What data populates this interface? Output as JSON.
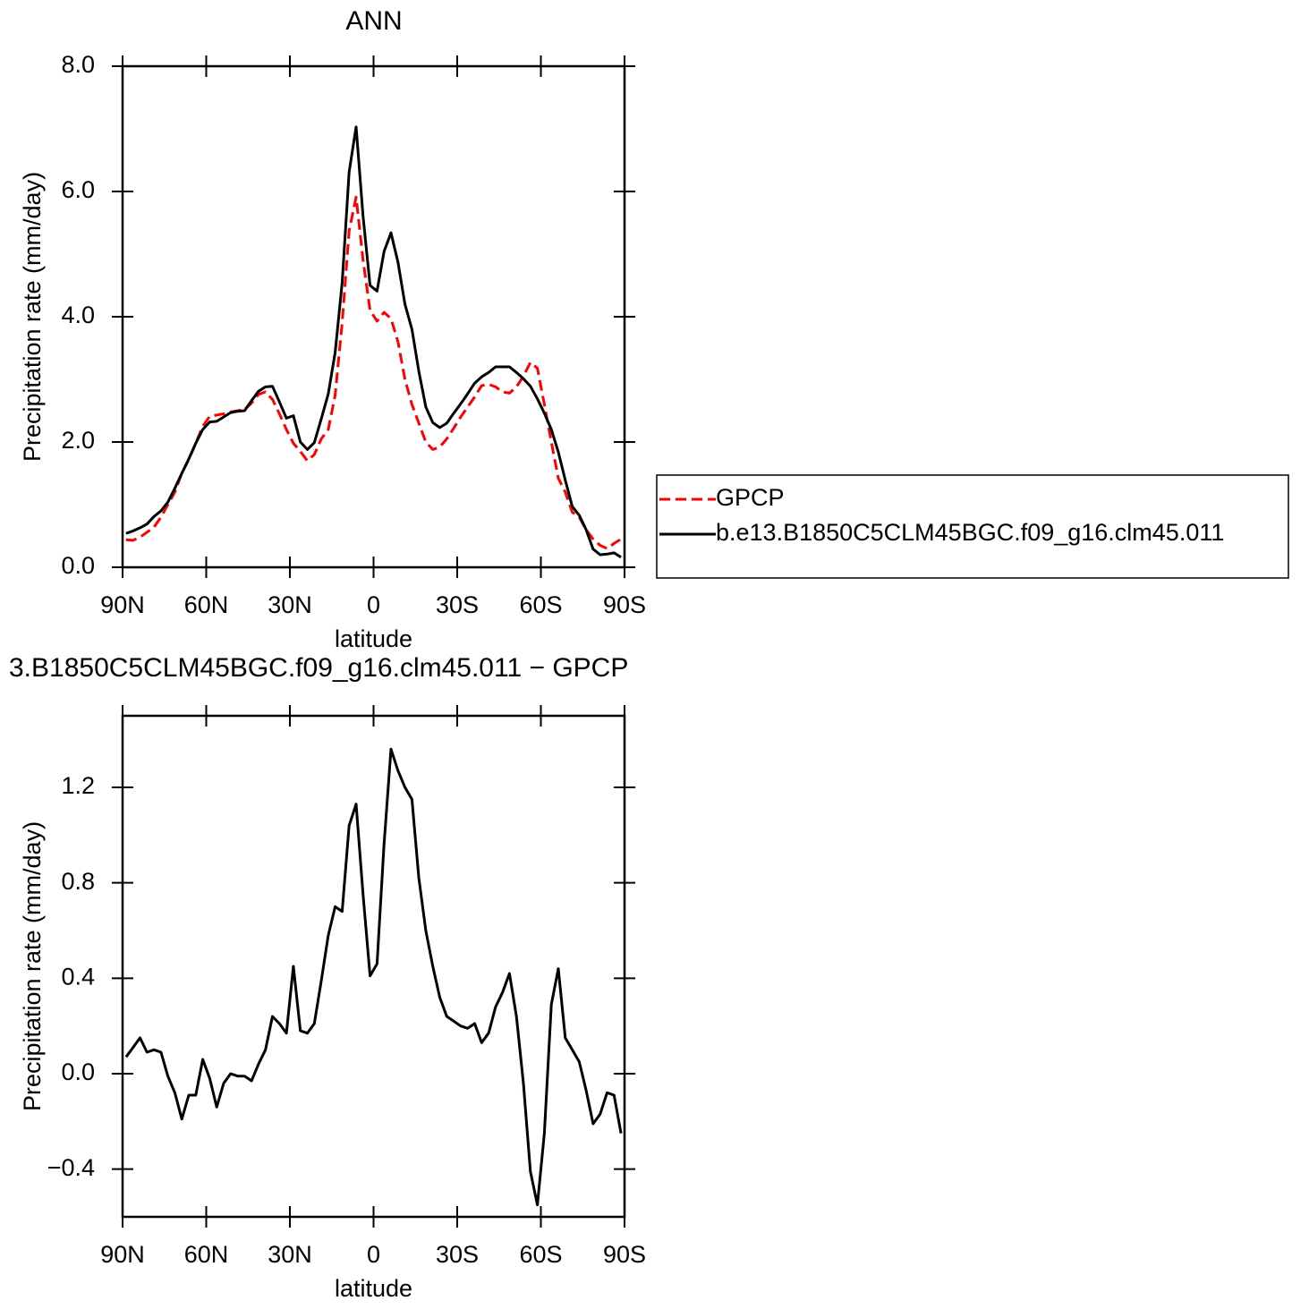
{
  "chart_data": [
    {
      "type": "line",
      "title": "ANN",
      "xlabel": "latitude",
      "ylabel": "Precipitation rate (mm/day)",
      "x": [
        88.75,
        86.25,
        83.75,
        81.25,
        78.75,
        76.25,
        73.75,
        71.25,
        68.75,
        66.25,
        63.75,
        61.25,
        58.75,
        56.25,
        53.75,
        51.25,
        48.75,
        46.25,
        43.75,
        41.25,
        38.75,
        36.25,
        33.75,
        31.25,
        28.75,
        26.25,
        23.75,
        21.25,
        18.75,
        16.25,
        13.75,
        11.25,
        8.75,
        6.25,
        3.75,
        1.25,
        -1.25,
        -3.75,
        -6.25,
        -8.75,
        -11.25,
        -13.75,
        -16.25,
        -18.75,
        -21.25,
        -23.75,
        -26.25,
        -28.75,
        -31.25,
        -33.75,
        -36.25,
        -38.75,
        -41.25,
        -43.75,
        -46.25,
        -48.75,
        -51.25,
        -53.75,
        -56.25,
        -58.75,
        -61.25,
        -63.75,
        -66.25,
        -68.75,
        -71.25,
        -73.75,
        -76.25,
        -78.75,
        -81.25,
        -83.75,
        -86.25,
        -88.75
      ],
      "series": [
        {
          "name": "GPCP",
          "color": "#ff0000",
          "style": "dashed",
          "values": [
            0.44,
            0.43,
            0.48,
            0.56,
            0.64,
            0.8,
            1.0,
            1.2,
            1.5,
            1.72,
            1.98,
            2.25,
            2.41,
            2.43,
            2.45,
            2.48,
            2.5,
            2.52,
            2.62,
            2.76,
            2.8,
            2.68,
            2.45,
            2.2,
            1.98,
            1.85,
            1.7,
            1.8,
            2.05,
            2.2,
            2.75,
            3.9,
            5.37,
            5.91,
            4.9,
            4.1,
            3.93,
            4.07,
            3.97,
            3.6,
            3.0,
            2.6,
            2.3,
            2.0,
            1.88,
            1.92,
            2.05,
            2.22,
            2.4,
            2.56,
            2.72,
            2.9,
            2.92,
            2.88,
            2.8,
            2.78,
            2.88,
            3.05,
            3.27,
            3.18,
            2.6,
            2.0,
            1.42,
            1.2,
            0.88,
            0.8,
            0.6,
            0.45,
            0.35,
            0.3,
            0.38,
            0.45
          ]
        },
        {
          "name": "b.e13.B1850C5CLM45BGC.f09_g16.clm45.011",
          "color": "#000000",
          "style": "solid",
          "values": [
            0.54,
            0.58,
            0.63,
            0.69,
            0.81,
            0.9,
            1.04,
            1.26,
            1.5,
            1.73,
            1.98,
            2.2,
            2.32,
            2.33,
            2.4,
            2.47,
            2.49,
            2.5,
            2.66,
            2.81,
            2.88,
            2.89,
            2.64,
            2.38,
            2.42,
            2.0,
            1.88,
            1.99,
            2.37,
            2.77,
            3.43,
            4.54,
            6.31,
            7.03,
            5.6,
            4.5,
            4.41,
            5.04,
            5.34,
            4.87,
            4.2,
            3.8,
            3.13,
            2.56,
            2.31,
            2.23,
            2.3,
            2.46,
            2.61,
            2.77,
            2.94,
            3.04,
            3.11,
            3.2,
            3.2,
            3.2,
            3.11,
            3.01,
            2.89,
            2.69,
            2.46,
            2.2,
            1.84,
            1.39,
            0.97,
            0.83,
            0.6,
            0.29,
            0.2,
            0.21,
            0.23,
            0.16
          ]
        }
      ],
      "xlim": [
        90,
        -90
      ],
      "xticks": [
        {
          "value": 90,
          "label": "90N"
        },
        {
          "value": 60,
          "label": "60N"
        },
        {
          "value": 30,
          "label": "30N"
        },
        0,
        {
          "value": -30,
          "label": "30S"
        },
        {
          "value": -60,
          "label": "60S"
        },
        {
          "value": -90,
          "label": "90S"
        }
      ],
      "ylim": [
        0,
        8
      ],
      "yticks": [
        {
          "value": 0,
          "label": "0.0"
        },
        {
          "value": 2,
          "label": "2.0"
        },
        {
          "value": 4,
          "label": "4.0"
        },
        {
          "value": 6,
          "label": "6.0"
        },
        {
          "value": 8,
          "label": "8.0"
        }
      ],
      "legend": "right"
    },
    {
      "type": "line",
      "title": "3.B1850C5CLM45BGC.f09_g16.clm45.011 − GPCP",
      "xlabel": "latitude",
      "ylabel": "Precipitation rate (mm/day)",
      "x": [
        88.75,
        86.25,
        83.75,
        81.25,
        78.75,
        76.25,
        73.75,
        71.25,
        68.75,
        66.25,
        63.75,
        61.25,
        58.75,
        56.25,
        53.75,
        51.25,
        48.75,
        46.25,
        43.75,
        41.25,
        38.75,
        36.25,
        33.75,
        31.25,
        28.75,
        26.25,
        23.75,
        21.25,
        18.75,
        16.25,
        13.75,
        11.25,
        8.75,
        6.25,
        3.75,
        1.25,
        -1.25,
        -3.75,
        -6.25,
        -8.75,
        -11.25,
        -13.75,
        -16.25,
        -18.75,
        -21.25,
        -23.75,
        -26.25,
        -28.75,
        -31.25,
        -33.75,
        -36.25,
        -38.75,
        -41.25,
        -43.75,
        -46.25,
        -48.75,
        -51.25,
        -53.75,
        -56.25,
        -58.75,
        -61.25,
        -63.75,
        -66.25,
        -68.75,
        -71.25,
        -73.75,
        -76.25,
        -78.75,
        -81.25,
        -83.75,
        -86.25,
        -88.75
      ],
      "series": [
        {
          "color": "#000000",
          "style": "solid",
          "values": [
            0.07,
            0.11,
            0.15,
            0.09,
            0.1,
            0.09,
            -0.01,
            -0.08,
            -0.19,
            -0.09,
            -0.09,
            0.06,
            -0.02,
            -0.14,
            -0.04,
            0.0,
            -0.01,
            -0.01,
            -0.03,
            0.04,
            0.1,
            0.24,
            0.21,
            0.17,
            0.45,
            0.18,
            0.17,
            0.21,
            0.39,
            0.58,
            0.7,
            0.68,
            1.04,
            1.13,
            0.75,
            0.41,
            0.46,
            0.96,
            1.36,
            1.27,
            1.2,
            1.15,
            0.82,
            0.6,
            0.45,
            0.32,
            0.24,
            0.22,
            0.2,
            0.19,
            0.21,
            0.13,
            0.17,
            0.28,
            0.34,
            0.42,
            0.24,
            -0.04,
            -0.41,
            -0.55,
            -0.25,
            0.29,
            0.44,
            0.15,
            0.1,
            0.05,
            -0.07,
            -0.21,
            -0.17,
            -0.08,
            -0.09,
            -0.25
          ]
        }
      ],
      "xlim": [
        90,
        -90
      ],
      "xticks": [
        {
          "value": 90,
          "label": "90N"
        },
        {
          "value": 60,
          "label": "60N"
        },
        {
          "value": 30,
          "label": "30N"
        },
        0,
        {
          "value": -30,
          "label": "30S"
        },
        {
          "value": -60,
          "label": "60S"
        },
        {
          "value": -90,
          "label": "90S"
        }
      ],
      "ylim": [
        -0.6,
        1.5
      ],
      "yticks": [
        {
          "value": -0.4,
          "label": "−0.4"
        },
        {
          "value": 0,
          "label": "0.0"
        },
        0.4,
        0.8,
        1.2
      ]
    }
  ]
}
